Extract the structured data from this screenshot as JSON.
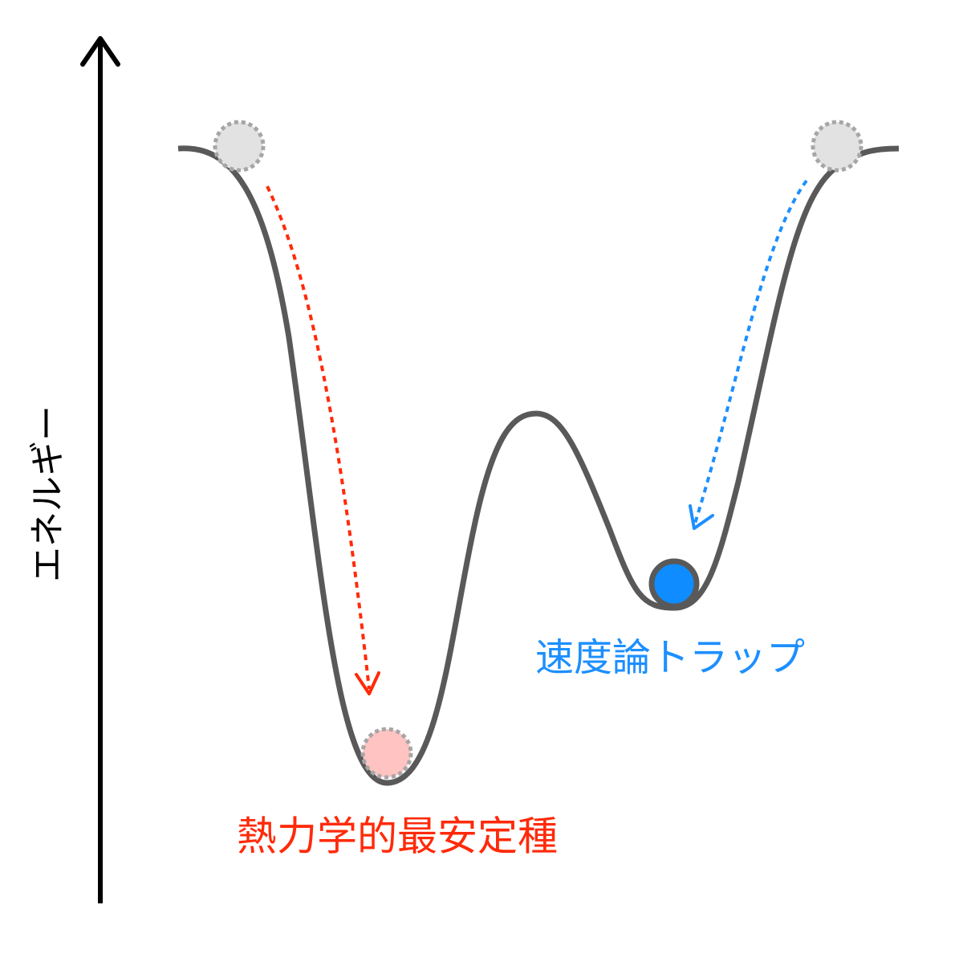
{
  "axis_label": "エネルギー",
  "labels": {
    "kinetic_trap": "速度論トラップ",
    "thermodynamic_product": "熱力学的最安定種"
  }
}
